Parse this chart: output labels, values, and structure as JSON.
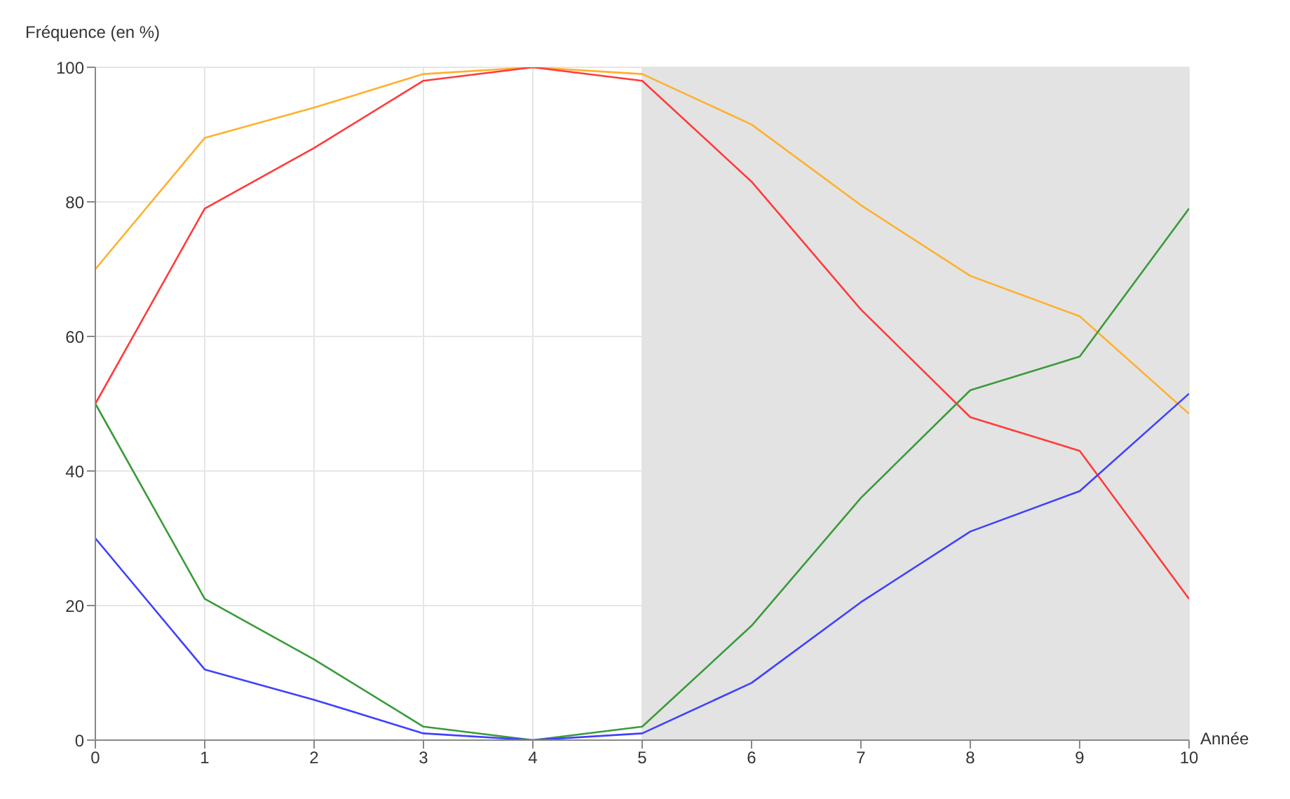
{
  "chart_data": {
    "type": "line",
    "xlabel": "Année",
    "ylabel": "Fréquence (en %)",
    "x": [
      0,
      1,
      2,
      3,
      4,
      5,
      6,
      7,
      8,
      9,
      10
    ],
    "series": [
      {
        "color": "#ffb02e",
        "values": [
          70,
          89.5,
          94,
          99,
          100,
          99,
          91.5,
          79.5,
          69,
          63,
          48.5
        ]
      },
      {
        "color": "#ff3b3b",
        "values": [
          50,
          79,
          88,
          98,
          100,
          98,
          83,
          64,
          48,
          43,
          21
        ]
      },
      {
        "color": "#3a9a3a",
        "values": [
          50,
          21,
          12,
          2,
          0,
          2,
          17,
          36,
          52,
          57,
          79
        ]
      },
      {
        "color": "#4040ff",
        "values": [
          30,
          10.5,
          6,
          1,
          0,
          1,
          8.5,
          20.5,
          31,
          37,
          51.5
        ]
      }
    ],
    "xlim": [
      0,
      10
    ],
    "xticks": [
      0,
      1,
      2,
      3,
      4,
      5,
      6,
      7,
      8,
      9,
      10
    ],
    "ylim": [
      0,
      100
    ],
    "yticks": [
      0,
      20,
      40,
      60,
      80,
      100
    ],
    "bands": [
      {
        "axis": "x",
        "from": 5,
        "to": 10,
        "color": "#e3e3e3"
      }
    ],
    "grid": true,
    "legend": false,
    "marker": "none",
    "line_style": "solid"
  }
}
